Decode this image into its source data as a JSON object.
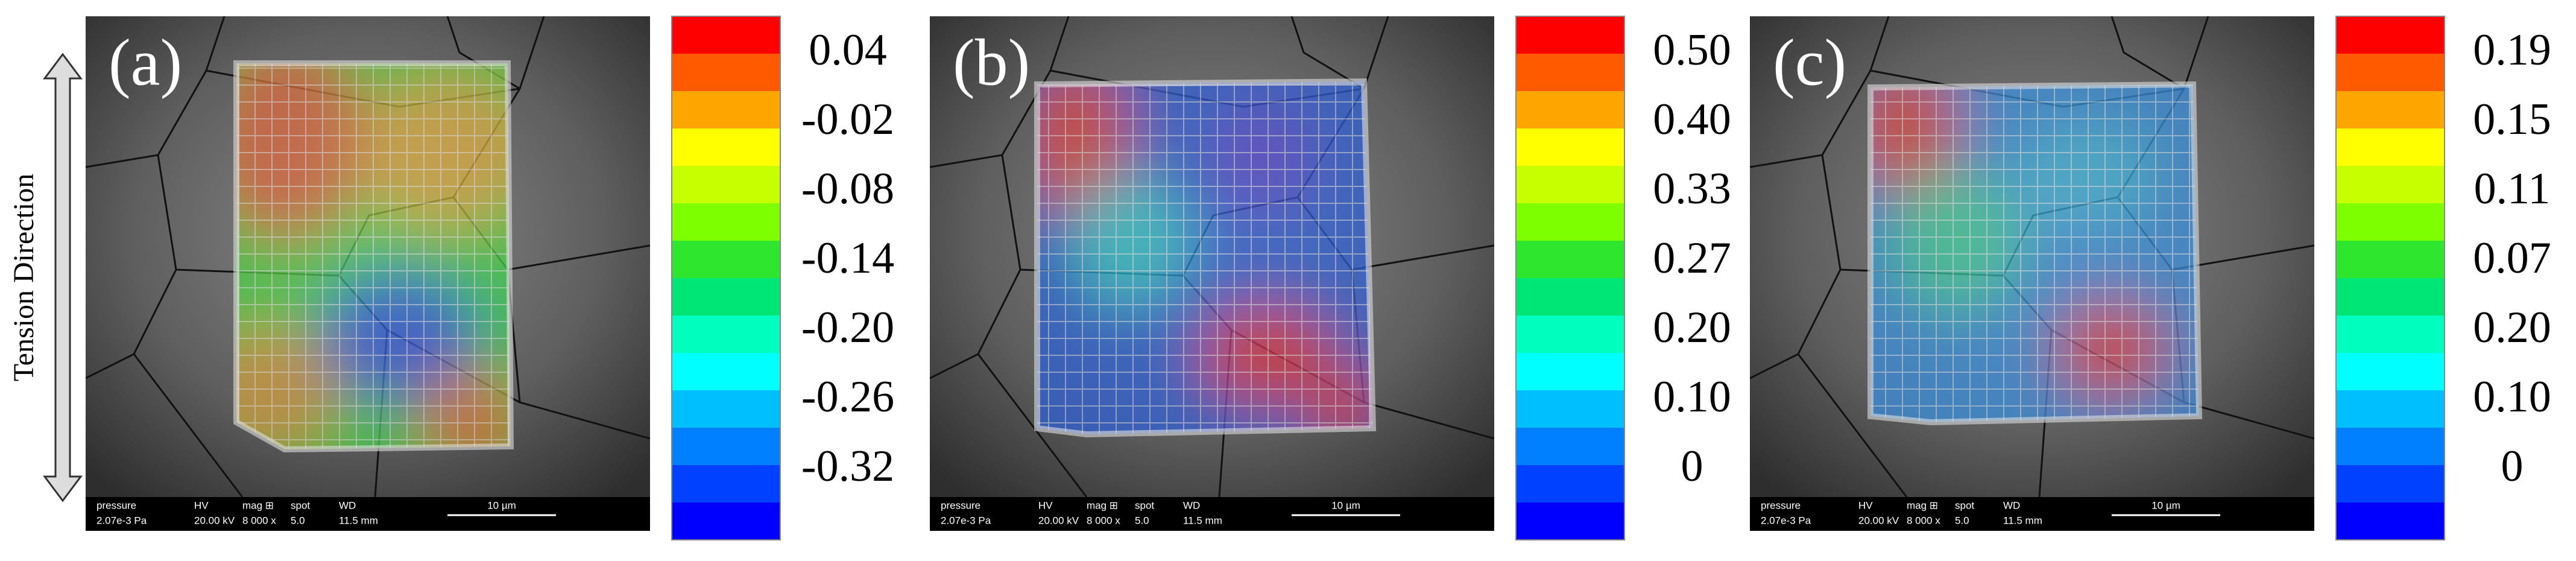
{
  "side_label": "Tension Direction",
  "colorbar_colors": [
    "#ff0000",
    "#ff5a00",
    "#ffa500",
    "#ffff00",
    "#c8ff00",
    "#7dff00",
    "#2ee62e",
    "#00e676",
    "#00ffbf",
    "#00ffff",
    "#00bfff",
    "#0080ff",
    "#0040ff",
    "#0000ff"
  ],
  "info_bar": {
    "headers": [
      "pressure",
      "HV",
      "mag ⊞",
      "spot",
      "WD"
    ],
    "values": [
      "2.07e-3 Pa",
      "20.00 kV",
      "8 000 x",
      "5.0",
      "11.5 mm"
    ],
    "scale": "10 µm"
  },
  "panels": [
    {
      "label": "(a)",
      "colorbar_labels": [
        "0.04",
        "-0.02",
        "-0.08",
        "-0.14",
        "-0.20",
        "-0.26",
        "-0.32"
      ]
    },
    {
      "label": "(b)",
      "colorbar_labels": [
        "0.50",
        "0.40",
        "0.33",
        "0.27",
        "0.20",
        "0.10",
        "0"
      ]
    },
    {
      "label": "(c)",
      "colorbar_labels": [
        "0.19",
        "0.15",
        "0.11",
        "0.07",
        "0.20",
        "0.10",
        "0"
      ]
    }
  ]
}
